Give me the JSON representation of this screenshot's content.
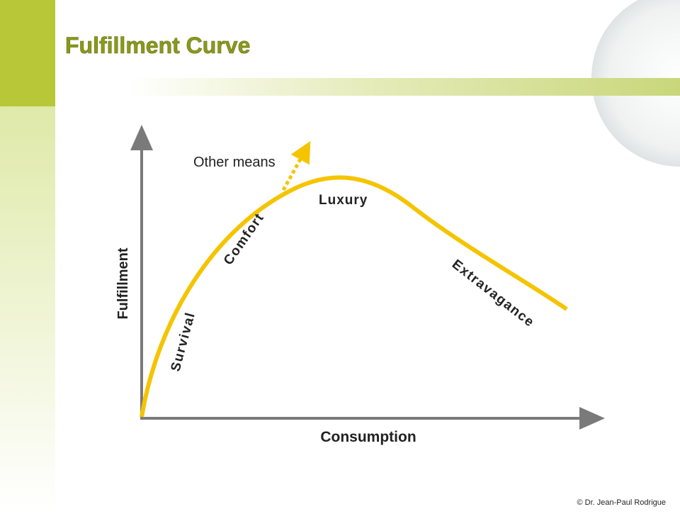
{
  "header": {
    "title": "Fulfillment Curve"
  },
  "diagram": {
    "y_axis_label": "Fulfillment",
    "x_axis_label": "Consumption",
    "stages": [
      "Survival",
      "Comfort",
      "Luxury",
      "Extravagance"
    ],
    "branch_label": "Other means"
  },
  "footer": {
    "copyright": "© Dr. Jean-Paul Rodrigue"
  }
}
